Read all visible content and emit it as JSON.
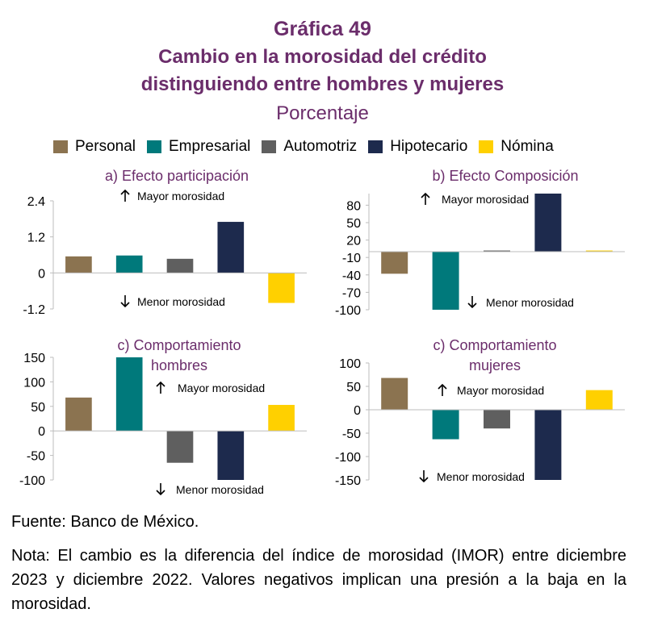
{
  "header": {
    "title": "Gráfica 49",
    "subtitle_line1": "Cambio en la morosidad del crédito",
    "subtitle_line2": "distinguiendo entre hombres y mujeres",
    "units": "Porcentaje"
  },
  "legend": [
    {
      "label": "Personal",
      "color": "#8b7350"
    },
    {
      "label": "Empresarial",
      "color": "#00797b"
    },
    {
      "label": "Automotriz",
      "color": "#5f5f5f"
    },
    {
      "label": "Hipotecario",
      "color": "#1d2a4d"
    },
    {
      "label": "Nómina",
      "color": "#ffd000"
    }
  ],
  "chart_data": [
    {
      "type": "bar",
      "title_lines": [
        "a) Efecto participación"
      ],
      "categories": [
        "Personal",
        "Empresarial",
        "Automotriz",
        "Hipotecario",
        "Nómina"
      ],
      "values": [
        0.55,
        0.58,
        0.47,
        1.7,
        -1.0
      ],
      "ylim": [
        -1.2,
        2.4
      ],
      "yticks": [
        "2.4",
        "1.2",
        "0",
        "-1.2"
      ],
      "annotation_up": "Mayor morosidad",
      "annotation_down": "Menor morosidad"
    },
    {
      "type": "bar",
      "title_lines": [
        "b)  Efecto Composición"
      ],
      "categories": [
        "Personal",
        "Empresarial",
        "Automotriz",
        "Hipotecario",
        "Nómina"
      ],
      "values": [
        -38,
        -100,
        2,
        100,
        2
      ],
      "ylim": [
        -100,
        100
      ],
      "yticks": [
        "80",
        "50",
        "20",
        "-10",
        "-40",
        "-70",
        "-100"
      ],
      "annotation_up": "Mayor morosidad",
      "annotation_down": "Menor morosidad"
    },
    {
      "type": "bar",
      "title_lines": [
        "c) Comportamiento",
        "hombres"
      ],
      "categories": [
        "Personal",
        "Empresarial",
        "Automotriz",
        "Hipotecario",
        "Nómina"
      ],
      "values": [
        68,
        150,
        -65,
        -100,
        53
      ],
      "ylim": [
        -100,
        150
      ],
      "yticks": [
        "150",
        "100",
        "50",
        "0",
        "-50",
        "-100"
      ],
      "annotation_up": "Mayor morosidad",
      "annotation_down": "Menor morosidad"
    },
    {
      "type": "bar",
      "title_lines": [
        "c) Comportamiento",
        "mujeres"
      ],
      "categories": [
        "Personal",
        "Empresarial",
        "Automotriz",
        "Hipotecario",
        "Nómina"
      ],
      "values": [
        68,
        -63,
        -40,
        -150,
        42
      ],
      "ylim": [
        -150,
        100
      ],
      "yticks": [
        "100",
        "50",
        "0",
        "-50",
        "-100",
        "-150"
      ],
      "annotation_up": "Mayor morosidad",
      "annotation_down": "Menor morosidad"
    }
  ],
  "footer": {
    "source": "Fuente: Banco de México.",
    "note": "Nota: El cambio es la diferencia del índice de morosidad (IMOR) entre diciembre 2023 y diciembre 2022. Valores negativos implican una presión a la baja en la morosidad."
  }
}
